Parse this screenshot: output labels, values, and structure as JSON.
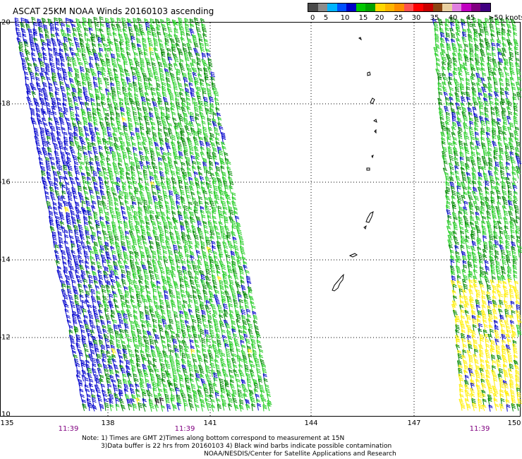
{
  "title": "ASCAT 25KM NOAA Winds 20160103 ascending",
  "scale": {
    "colors": [
      "#4a4a4a",
      "#8c8c8c",
      "#00b4ff",
      "#0050ff",
      "#0000c8",
      "#00c800",
      "#00a000",
      "#ffd700",
      "#ffb400",
      "#ff8c00",
      "#ff5050",
      "#ff0000",
      "#c80000",
      "#8b4513",
      "#e8cfa0",
      "#e080e0",
      "#c000c0",
      "#800080",
      "#400080"
    ],
    "labels": [
      "0",
      "5",
      "10",
      "15",
      "20",
      "25",
      "30",
      "35",
      "40",
      "45",
      ">50 knots"
    ]
  },
  "map": {
    "lat_labels": [
      "20",
      "18",
      "16",
      "14",
      "12",
      "10"
    ],
    "lon_labels": [
      "135",
      "138",
      "141",
      "144",
      "147",
      "150"
    ],
    "pass_times": [
      "11:39",
      "11:39",
      "11:39"
    ],
    "barb_colors": {
      "dark_blue": "#0000cc",
      "light_green": "#22cc22",
      "dark_green": "#008800",
      "yellow": "#ffee00",
      "black": "#000000"
    }
  },
  "notes": [
    "Note: 1) Times are GMT 2)Times along bottom correspond to measurement at 15N",
    "3)Data buffer is 22 hrs from 20160103 4) Black wind barbs indicate possible contamination",
    "NOAA/NESDIS/Center for Satellite Applications and Research"
  ]
}
